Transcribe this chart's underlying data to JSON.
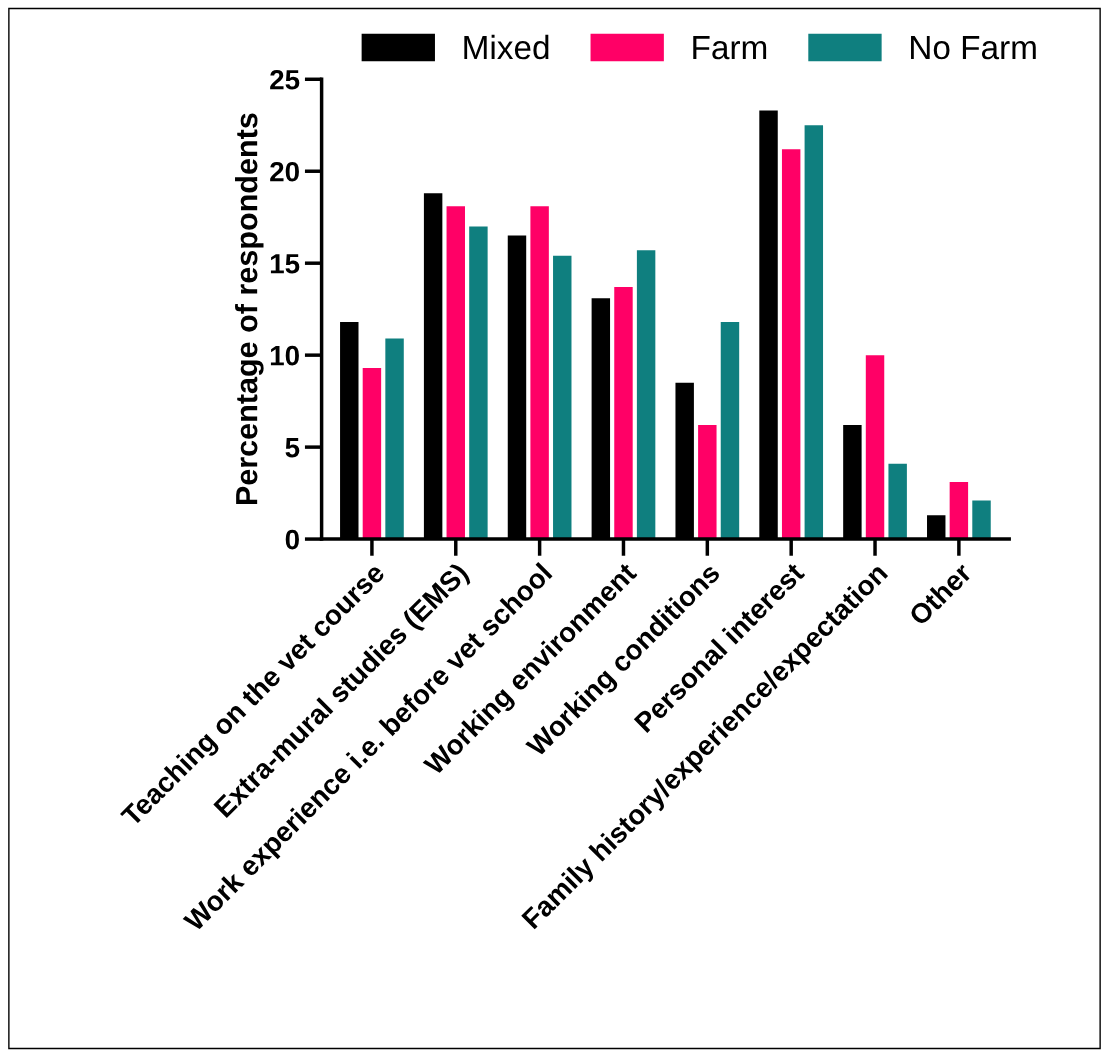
{
  "chart_data": {
    "type": "bar",
    "ylabel": "Percentage of respondents",
    "categories": [
      "Teaching on the vet course",
      "Extra-mural studies (EMS)",
      "Work experience i.e. before vet school",
      "Working environment",
      "Working conditions",
      "Personal interest",
      "Family history/experience/expectation",
      "Other"
    ],
    "series": [
      {
        "name": "Mixed",
        "color": "#000000",
        "values": [
          11.8,
          18.8,
          16.5,
          13.1,
          8.5,
          23.3,
          6.2,
          1.3
        ]
      },
      {
        "name": "Farm",
        "color": "#ff0066",
        "values": [
          9.3,
          18.1,
          18.1,
          13.7,
          6.2,
          21.2,
          10.0,
          3.1
        ]
      },
      {
        "name": "No Farm",
        "color": "#0f7f7f",
        "values": [
          10.9,
          17.0,
          15.4,
          15.7,
          11.8,
          22.5,
          4.1,
          2.1
        ]
      }
    ],
    "ylim": [
      0,
      25
    ],
    "yticks": [
      0,
      5,
      10,
      15,
      20,
      25
    ],
    "grid": false,
    "legend": "top"
  }
}
